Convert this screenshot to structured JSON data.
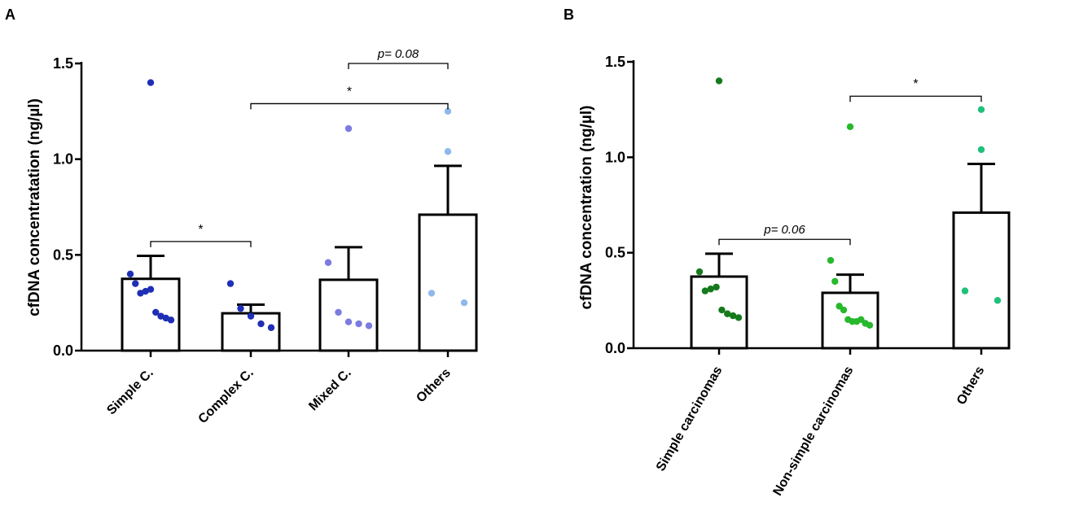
{
  "chart_data": [
    {
      "panel": "A",
      "type": "bar",
      "ylabel": "cfDNA concentratation (ng/µl)",
      "ylim": [
        0,
        1.5
      ],
      "yticks": [
        "0.0",
        "0.5",
        "1.0",
        "1.5"
      ],
      "categories": [
        "Simple C.",
        "Complex C.",
        "Mixed C.",
        "Others"
      ],
      "means": [
        0.375,
        0.195,
        0.37,
        0.71
      ],
      "errors": [
        0.12,
        0.045,
        0.17,
        0.255
      ],
      "colors": [
        "#1f2fb5",
        "#1f2fb5",
        "#7b7be0",
        "#8fb8ec"
      ],
      "points": [
        [
          1.4,
          0.4,
          0.35,
          0.3,
          0.31,
          0.32,
          0.2,
          0.18,
          0.17,
          0.16
        ],
        [
          0.35,
          0.22,
          0.18,
          0.14,
          0.12
        ],
        [
          1.16,
          0.46,
          0.2,
          0.15,
          0.14,
          0.13
        ],
        [
          1.25,
          1.04,
          0.3,
          0.25
        ]
      ],
      "comparisons": [
        {
          "from": 0,
          "to": 1,
          "level": 0.57,
          "label": "*"
        },
        {
          "from": 1,
          "to": 3,
          "level": 1.29,
          "label": "*"
        },
        {
          "from": 2,
          "to": 3,
          "level": 1.5,
          "label": "p= 0.08"
        }
      ]
    },
    {
      "panel": "B",
      "type": "bar",
      "ylabel": "cfDNA concentration (ng/µl)",
      "ylim": [
        0,
        1.5
      ],
      "yticks": [
        "0.0",
        "0.5",
        "1.0",
        "1.5"
      ],
      "categories": [
        "Simple carcinomas",
        "Non-simple carcinomas",
        "Others"
      ],
      "means": [
        0.375,
        0.29,
        0.71
      ],
      "errors": [
        0.12,
        0.095,
        0.255
      ],
      "colors": [
        "#157a1c",
        "#27b82c",
        "#1ec07a"
      ],
      "points": [
        [
          1.4,
          0.4,
          0.3,
          0.31,
          0.32,
          0.2,
          0.18,
          0.17,
          0.16
        ],
        [
          1.16,
          0.46,
          0.35,
          0.22,
          0.2,
          0.15,
          0.14,
          0.14,
          0.15,
          0.13,
          0.12
        ],
        [
          1.25,
          1.04,
          0.3,
          0.25
        ]
      ],
      "comparisons": [
        {
          "from": 0,
          "to": 1,
          "level": 0.57,
          "label": "p= 0.06"
        },
        {
          "from": 1,
          "to": 2,
          "level": 1.32,
          "label": "*"
        }
      ]
    }
  ]
}
